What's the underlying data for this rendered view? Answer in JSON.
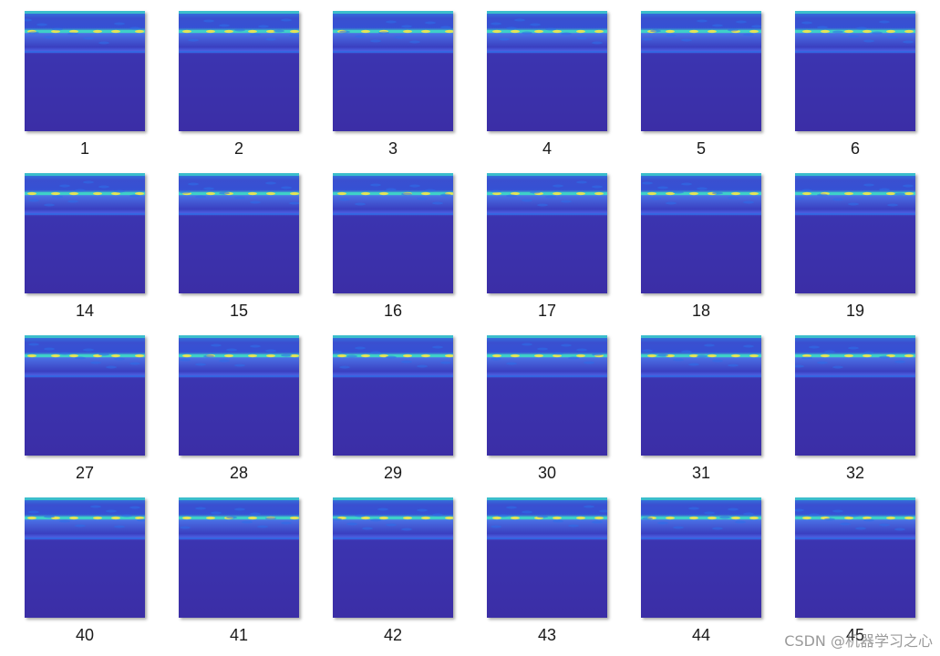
{
  "thumbnails": [
    {
      "label": "1"
    },
    {
      "label": "2"
    },
    {
      "label": "3"
    },
    {
      "label": "4"
    },
    {
      "label": "5"
    },
    {
      "label": "6"
    },
    {
      "label": "14"
    },
    {
      "label": "15"
    },
    {
      "label": "16"
    },
    {
      "label": "17"
    },
    {
      "label": "18"
    },
    {
      "label": "19"
    },
    {
      "label": "27"
    },
    {
      "label": "28"
    },
    {
      "label": "29"
    },
    {
      "label": "30"
    },
    {
      "label": "31"
    },
    {
      "label": "32"
    },
    {
      "label": "40"
    },
    {
      "label": "41"
    },
    {
      "label": "42"
    },
    {
      "label": "43"
    },
    {
      "label": "44"
    },
    {
      "label": "45"
    }
  ],
  "thumbnail_icon": "spectrogram-image-icon",
  "colors": {
    "background": "#3b2ea6",
    "band_bright": "#f5e64a",
    "band_mid": "#3fd0c8",
    "band_low": "#2d6ee8"
  },
  "watermark": "CSDN @机器学习之心"
}
